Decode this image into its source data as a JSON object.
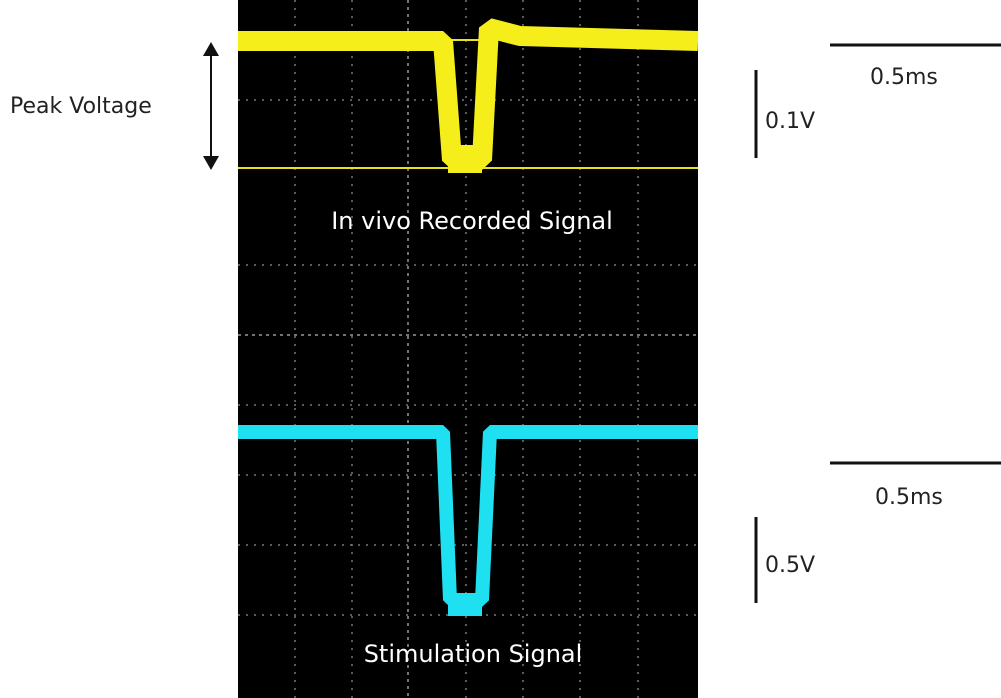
{
  "annotations": {
    "peak_voltage": "Peak Voltage"
  },
  "scope": {
    "channel1_label": "In vivo Recorded  Signal",
    "channel2_label": "Stimulation Signal"
  },
  "scale_bars": [
    {
      "time": "0.5ms",
      "voltage": "0.1V"
    },
    {
      "time": "0.5ms",
      "voltage": "0.5V"
    }
  ]
}
